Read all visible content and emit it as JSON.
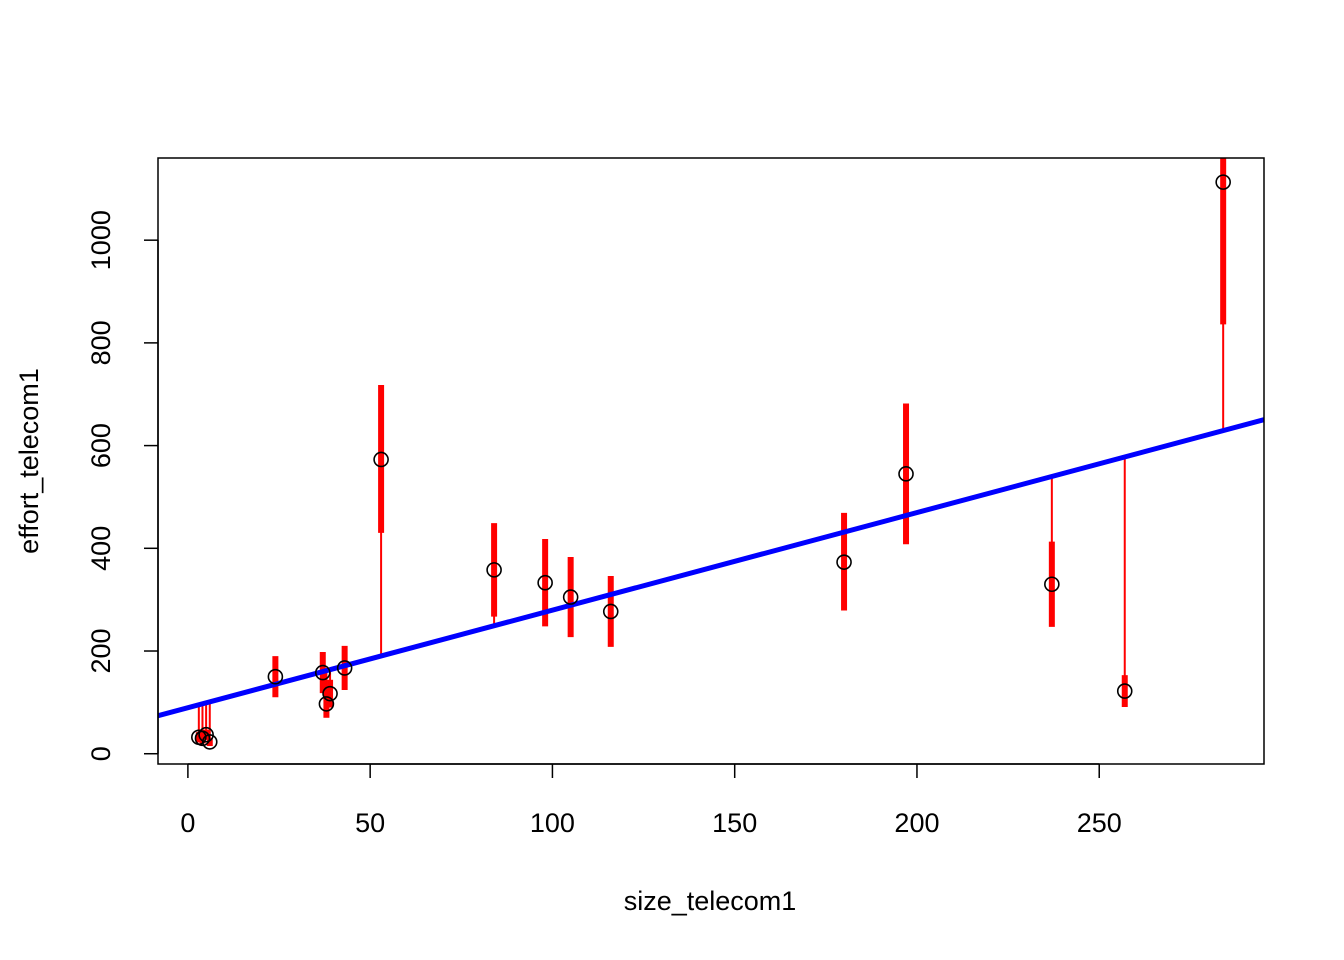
{
  "chart_data": {
    "type": "scatter",
    "title": "",
    "xlabel": "size_telecom1",
    "ylabel": "effort_telecom1",
    "xlim": [
      -8.2,
      295.2
    ],
    "ylim": [
      -20,
      1160
    ],
    "x_ticks": [
      0,
      50,
      100,
      150,
      200,
      250
    ],
    "x_tick_labels": [
      "0",
      "50",
      "100",
      "150",
      "200",
      "250"
    ],
    "y_ticks": [
      0,
      200,
      400,
      600,
      800,
      1000
    ],
    "y_tick_labels": [
      "0",
      "200",
      "400",
      "600",
      "800",
      "1000"
    ],
    "grid": false,
    "legend": "none",
    "points": {
      "x": [
        3,
        4,
        5,
        6,
        24,
        37,
        38,
        39,
        43,
        53,
        84,
        98,
        105,
        116,
        180,
        197,
        237,
        257,
        284
      ],
      "y": [
        32,
        30,
        37,
        23,
        150,
        158,
        97,
        117,
        167,
        573,
        358,
        333,
        305,
        277,
        373,
        545,
        330,
        122,
        1113
      ]
    },
    "fit_line": {
      "intercept": 89.6,
      "slope": 1.9,
      "color": "#0000ff"
    },
    "residual_color": "#ff0000",
    "interval_color": "#ff0000",
    "intervals": [
      {
        "x": 3,
        "low": 22,
        "high": 42
      },
      {
        "x": 4,
        "low": 20,
        "high": 40
      },
      {
        "x": 5,
        "low": 27,
        "high": 47
      },
      {
        "x": 6,
        "low": 15,
        "high": 31
      },
      {
        "x": 24,
        "low": 110,
        "high": 190
      },
      {
        "x": 37,
        "low": 118,
        "high": 198
      },
      {
        "x": 38,
        "low": 70,
        "high": 124
      },
      {
        "x": 39,
        "low": 90,
        "high": 144
      },
      {
        "x": 43,
        "low": 124,
        "high": 210
      },
      {
        "x": 53,
        "low": 430,
        "high": 718
      },
      {
        "x": 84,
        "low": 267,
        "high": 449
      },
      {
        "x": 98,
        "low": 248,
        "high": 418
      },
      {
        "x": 105,
        "low": 227,
        "high": 383
      },
      {
        "x": 116,
        "low": 208,
        "high": 346
      },
      {
        "x": 180,
        "low": 279,
        "high": 469
      },
      {
        "x": 197,
        "low": 408,
        "high": 682
      },
      {
        "x": 237,
        "low": 247,
        "high": 413
      },
      {
        "x": 257,
        "low": 91,
        "high": 153
      },
      {
        "x": 284,
        "low": 836,
        "high": 1160
      }
    ]
  }
}
